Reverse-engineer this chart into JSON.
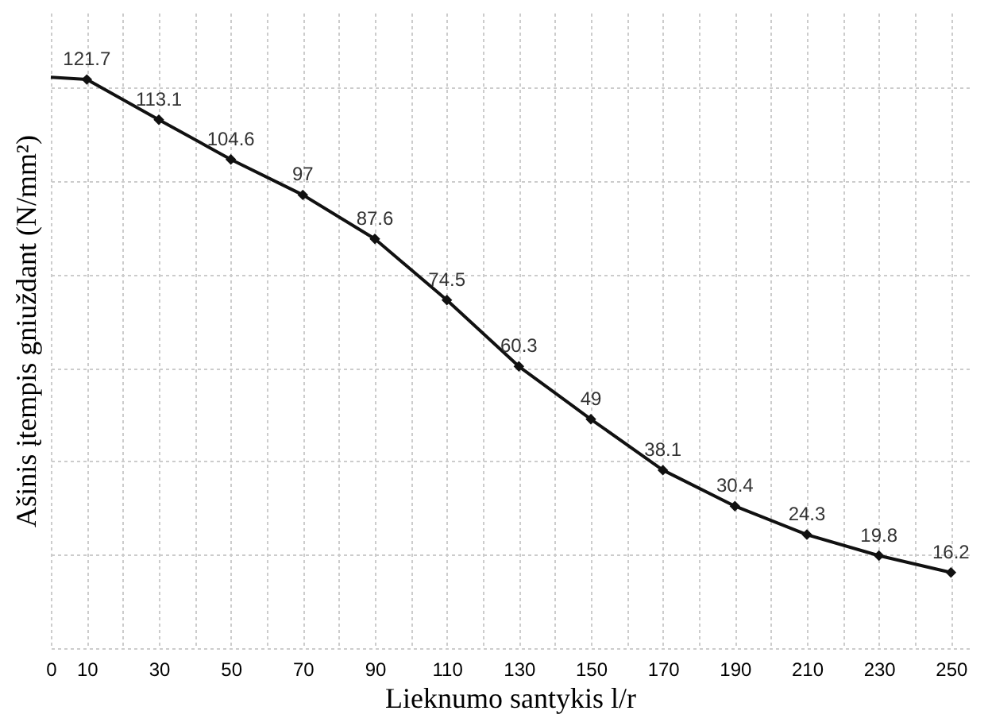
{
  "chart_data": {
    "type": "line",
    "xlabel": "Lieknumo santykis l/r",
    "ylabel": "Ašinis įtempis gniuždant (N/mm²)",
    "series": [
      {
        "color": "#111111",
        "x": [
          0,
          10
        ],
        "values": [
          122.2,
          121.7
        ]
      },
      {
        "color": "#111111",
        "marker": "diamond",
        "data_labels": true,
        "x": [
          10,
          30,
          50,
          70,
          90,
          110,
          130,
          150,
          170,
          190,
          210,
          230,
          250
        ],
        "values": [
          121.7,
          113.1,
          104.6,
          97,
          87.6,
          74.5,
          60.3,
          49,
          38.1,
          30.4,
          24.3,
          19.8,
          16.2
        ]
      }
    ],
    "xlim": [
      0,
      255
    ],
    "xticks": [
      {
        "value": 0,
        "label": "0"
      },
      {
        "value": 10,
        "label": "10"
      },
      {
        "value": 20,
        "label": null
      },
      {
        "value": 30,
        "label": "30"
      },
      {
        "value": 40,
        "label": null
      },
      {
        "value": 50,
        "label": "50"
      },
      {
        "value": 60,
        "label": null
      },
      {
        "value": 70,
        "label": "70"
      },
      {
        "value": 80,
        "label": null
      },
      {
        "value": 90,
        "label": "90"
      },
      {
        "value": 100,
        "label": null
      },
      {
        "value": 110,
        "label": "110"
      },
      {
        "value": 120,
        "label": null
      },
      {
        "value": 130,
        "label": "130"
      },
      {
        "value": 140,
        "label": null
      },
      {
        "value": 150,
        "label": "150"
      },
      {
        "value": 160,
        "label": null
      },
      {
        "value": 170,
        "label": "170"
      },
      {
        "value": 180,
        "label": null
      },
      {
        "value": 190,
        "label": "190"
      },
      {
        "value": 200,
        "label": null
      },
      {
        "value": 210,
        "label": "210"
      },
      {
        "value": 220,
        "label": null
      },
      {
        "value": 230,
        "label": "230"
      },
      {
        "value": 240,
        "label": null
      },
      {
        "value": 250,
        "label": "250"
      }
    ],
    "ylim": [
      0,
      136
    ],
    "yticks": [
      {
        "value": 0,
        "label": null
      },
      {
        "value": 20,
        "label": null
      },
      {
        "value": 40,
        "label": null
      },
      {
        "value": 60,
        "label": null
      },
      {
        "value": 80,
        "label": null
      },
      {
        "value": 100,
        "label": null
      },
      {
        "value": 120,
        "label": null
      }
    ],
    "grid": true
  }
}
